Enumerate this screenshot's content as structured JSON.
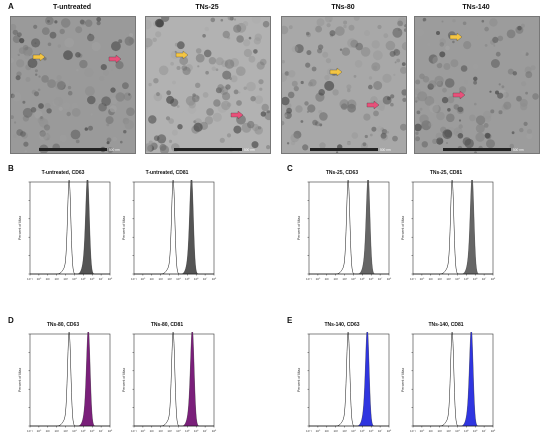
{
  "figure": {
    "panel_A": {
      "letter": "A",
      "images": [
        {
          "title": "T-untreated",
          "scale_label": "500 nm",
          "tone": "#9a9a9a"
        },
        {
          "title": "TNs-25",
          "scale_label": "500 nm",
          "tone": "#b2b2b2"
        },
        {
          "title": "TNs-80",
          "scale_label": "500 nm",
          "tone": "#a8a8a8"
        },
        {
          "title": "TNs-140",
          "scale_label": "500 nm",
          "tone": "#9c9c9c"
        }
      ],
      "arrow_colors": {
        "yellow": "#f4c542",
        "pink": "#e8507a"
      }
    },
    "histogram_panels": [
      {
        "letter": "B",
        "fill": "#555555",
        "plots": [
          {
            "title": "T-untreated, CD63",
            "ylabel": "Percent of Max"
          },
          {
            "title": "T-untreated, CD81",
            "ylabel": "Percent of Max"
          }
        ]
      },
      {
        "letter": "C",
        "fill": "#666666",
        "plots": [
          {
            "title": "TNs-25, CD63",
            "ylabel": "Percent of Max"
          },
          {
            "title": "TNs-25, CD81",
            "ylabel": "Percent of Max"
          }
        ]
      },
      {
        "letter": "D",
        "fill": "#7a1f7a",
        "plots": [
          {
            "title": "TNs-80, CD63",
            "ylabel": "Percent of Max"
          },
          {
            "title": "TNs-80, CD81",
            "ylabel": "Percent of Max"
          }
        ]
      },
      {
        "letter": "E",
        "fill": "#2f35e0",
        "plots": [
          {
            "title": "TNs-140, CD63",
            "ylabel": "Percent of Max"
          },
          {
            "title": "TNs-140, CD81",
            "ylabel": "Percent of Max"
          }
        ]
      }
    ],
    "x_ticks": [
      "10⁻¹",
      "10⁰",
      "10¹",
      "10²",
      "10³",
      "10⁴",
      "10⁵",
      "10⁶",
      "10⁷",
      "10⁸"
    ],
    "y_ticks": [
      "0",
      "20",
      "40",
      "60",
      "80",
      "100"
    ]
  }
}
